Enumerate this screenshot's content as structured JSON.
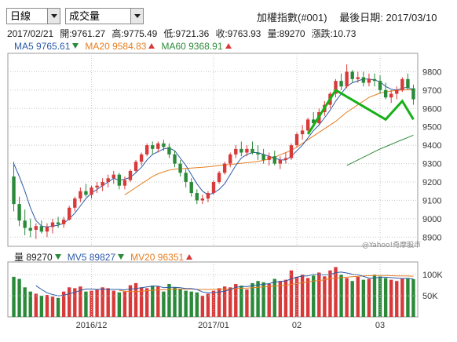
{
  "controls": {
    "period_select": "日線",
    "indicator_select": "成交量"
  },
  "header": {
    "index_name": "加權指數(#001)",
    "latest_date_label": "最後日期: 2017/03/10"
  },
  "quote": {
    "date": "2017/02/21",
    "open": "開:9761.27",
    "high": "高:9775.49",
    "low": "低:9721.36",
    "close": "收:9763.93",
    "volume": "量:89270",
    "change": "漲跌:10.73"
  },
  "ma_legend": [
    {
      "label": "MA5 9765.61",
      "color": "#2b5aa8",
      "trend": "down"
    },
    {
      "label": "MA20 9584.83",
      "color": "#e67e22",
      "trend": "up"
    },
    {
      "label": "MA60 9368.91",
      "color": "#2e8b3a",
      "trend": "up"
    }
  ],
  "vol_legend": [
    {
      "label": "量 89270",
      "color": "#222222",
      "trend": "down"
    },
    {
      "label": "MV5 89827",
      "color": "#2b5aa8",
      "trend": "down"
    },
    {
      "label": "MV20 96351",
      "color": "#e67e22",
      "trend": "up"
    }
  ],
  "colors": {
    "up": "#d83a3a",
    "down": "#2a8a3a",
    "ma5": "#2b5aa8",
    "ma20": "#e67e22",
    "ma60": "#2e8b3a",
    "grid": "#c8c8c8",
    "annotation": "#18b018"
  },
  "watermark": "@Yahoo!奇摩股市",
  "chart_data": [
    {
      "type": "candlestick",
      "ylim": [
        8850,
        9900
      ],
      "y_ticks": [
        "9800",
        "9700",
        "9600",
        "9500",
        "9400",
        "9300",
        "9200",
        "9100",
        "9000",
        "8900"
      ],
      "y_tick_values": [
        9800,
        9700,
        9600,
        9500,
        9400,
        9300,
        9200,
        9100,
        9000,
        8900
      ],
      "grid": true,
      "candles": [
        [
          9230,
          9310,
          9040,
          9080
        ],
        [
          9080,
          9120,
          8960,
          8990
        ],
        [
          8990,
          9050,
          8910,
          8950
        ],
        [
          8950,
          9000,
          8900,
          8935
        ],
        [
          8940,
          8975,
          8890,
          8960
        ],
        [
          8960,
          8990,
          8920,
          8930
        ],
        [
          8930,
          8975,
          8900,
          8955
        ],
        [
          8955,
          9000,
          8920,
          8980
        ],
        [
          8980,
          9010,
          8950,
          8970
        ],
        [
          8970,
          9010,
          8950,
          8995
        ],
        [
          8995,
          9070,
          8990,
          9060
        ],
        [
          9060,
          9120,
          9040,
          9110
        ],
        [
          9110,
          9170,
          9090,
          9150
        ],
        [
          9150,
          9190,
          9120,
          9130
        ],
        [
          9130,
          9180,
          9110,
          9170
        ],
        [
          9170,
          9200,
          9140,
          9180
        ],
        [
          9180,
          9220,
          9150,
          9200
        ],
        [
          9200,
          9240,
          9170,
          9220
        ],
        [
          9220,
          9260,
          9190,
          9240
        ],
        [
          9240,
          9250,
          9160,
          9180
        ],
        [
          9180,
          9230,
          9160,
          9210
        ],
        [
          9210,
          9270,
          9200,
          9260
        ],
        [
          9260,
          9320,
          9250,
          9310
        ],
        [
          9310,
          9360,
          9290,
          9350
        ],
        [
          9350,
          9410,
          9340,
          9400
        ],
        [
          9400,
          9420,
          9350,
          9380
        ],
        [
          9380,
          9420,
          9360,
          9410
        ],
        [
          9410,
          9430,
          9370,
          9390
        ],
        [
          9390,
          9410,
          9330,
          9350
        ],
        [
          9350,
          9370,
          9280,
          9300
        ],
        [
          9300,
          9320,
          9230,
          9250
        ],
        [
          9250,
          9270,
          9170,
          9200
        ],
        [
          9200,
          9220,
          9120,
          9140
        ],
        [
          9140,
          9160,
          9080,
          9100
        ],
        [
          9100,
          9130,
          9080,
          9110
        ],
        [
          9110,
          9150,
          9090,
          9140
        ],
        [
          9140,
          9210,
          9130,
          9200
        ],
        [
          9200,
          9260,
          9190,
          9250
        ],
        [
          9250,
          9310,
          9240,
          9300
        ],
        [
          9300,
          9360,
          9280,
          9350
        ],
        [
          9350,
          9400,
          9330,
          9380
        ],
        [
          9380,
          9420,
          9340,
          9360
        ],
        [
          9360,
          9400,
          9340,
          9380
        ],
        [
          9380,
          9420,
          9350,
          9360
        ],
        [
          9360,
          9400,
          9320,
          9350
        ],
        [
          9350,
          9380,
          9300,
          9320
        ],
        [
          9320,
          9360,
          9290,
          9340
        ],
        [
          9340,
          9370,
          9290,
          9300
        ],
        [
          9300,
          9340,
          9270,
          9320
        ],
        [
          9320,
          9360,
          9300,
          9330
        ],
        [
          9330,
          9410,
          9320,
          9400
        ],
        [
          9400,
          9470,
          9390,
          9460
        ],
        [
          9460,
          9510,
          9430,
          9480
        ],
        [
          9480,
          9550,
          9470,
          9540
        ],
        [
          9540,
          9580,
          9500,
          9520
        ],
        [
          9520,
          9600,
          9510,
          9580
        ],
        [
          9580,
          9640,
          9560,
          9620
        ],
        [
          9620,
          9690,
          9600,
          9680
        ],
        [
          9680,
          9760,
          9660,
          9750
        ],
        [
          9750,
          9790,
          9700,
          9720
        ],
        [
          9720,
          9840,
          9710,
          9800
        ],
        [
          9800,
          9810,
          9740,
          9760
        ],
        [
          9760,
          9800,
          9740,
          9770
        ],
        [
          9770,
          9800,
          9720,
          9740
        ],
        [
          9740,
          9790,
          9720,
          9760
        ],
        [
          9760,
          9790,
          9720,
          9750
        ],
        [
          9750,
          9780,
          9680,
          9700
        ],
        [
          9700,
          9740,
          9650,
          9660
        ],
        [
          9660,
          9700,
          9630,
          9680
        ],
        [
          9680,
          9720,
          9650,
          9700
        ],
        [
          9700,
          9770,
          9690,
          9760
        ],
        [
          9760,
          9790,
          9700,
          9710
        ],
        [
          9710,
          9730,
          9620,
          9650
        ]
      ],
      "ma5": [
        9300,
        9230,
        9150,
        9060,
        8990,
        8960,
        8955,
        8960,
        8965,
        8975,
        9000,
        9030,
        9070,
        9110,
        9140,
        9160,
        9180,
        9200,
        9220,
        9210,
        9215,
        9225,
        9250,
        9280,
        9320,
        9350,
        9365,
        9380,
        9385,
        9370,
        9330,
        9290,
        9240,
        9190,
        9150,
        9130,
        9140,
        9160,
        9190,
        9240,
        9290,
        9330,
        9350,
        9360,
        9360,
        9350,
        9340,
        9330,
        9320,
        9320,
        9340,
        9370,
        9400,
        9440,
        9480,
        9510,
        9550,
        9590,
        9640,
        9680,
        9720,
        9740,
        9750,
        9760,
        9760,
        9755,
        9745,
        9720,
        9705,
        9700,
        9710,
        9715,
        9700
      ],
      "ma20": [
        null,
        null,
        null,
        null,
        null,
        null,
        null,
        null,
        null,
        null,
        null,
        null,
        null,
        null,
        null,
        null,
        null,
        null,
        null,
        null,
        9130,
        9150,
        9170,
        9190,
        9210,
        9230,
        9245,
        9255,
        9265,
        9270,
        9272,
        9274,
        9276,
        9278,
        9280,
        9283,
        9286,
        9290,
        9292,
        9295,
        9298,
        9302,
        9305,
        9308,
        9312,
        9318,
        9325,
        9335,
        9348,
        9360,
        9372,
        9390,
        9410,
        9430,
        9450,
        9470,
        9490,
        9510,
        9530,
        9555,
        9580,
        9600,
        9620,
        9640,
        9660,
        9672,
        9684,
        9690,
        9695,
        9698,
        9700,
        9702,
        9700
      ],
      "ma60": [
        null,
        null,
        null,
        null,
        null,
        null,
        null,
        null,
        null,
        null,
        null,
        null,
        null,
        null,
        null,
        null,
        null,
        null,
        null,
        null,
        null,
        null,
        null,
        null,
        null,
        null,
        null,
        null,
        null,
        null,
        null,
        null,
        null,
        null,
        null,
        null,
        null,
        null,
        null,
        null,
        null,
        null,
        null,
        null,
        null,
        null,
        null,
        null,
        null,
        null,
        null,
        null,
        null,
        null,
        null,
        null,
        null,
        null,
        null,
        null,
        9290,
        9305,
        9320,
        9335,
        9350,
        9365,
        9380,
        9392,
        9405,
        9418,
        9430,
        9442,
        9455
      ],
      "annotation": [
        [
          9460,
          53
        ],
        [
          9700,
          58
        ],
        [
          9540,
          67
        ],
        [
          9640,
          70
        ],
        [
          9540,
          72
        ]
      ]
    },
    {
      "type": "bar",
      "ylim": [
        0,
        130000
      ],
      "y_ticks": [
        "100K",
        "50K"
      ],
      "y_tick_values": [
        100000,
        50000
      ],
      "x_ticks": [
        "2016/12",
        "2017/01",
        "02",
        "03"
      ],
      "x_tick_index": [
        14,
        36,
        51,
        66
      ],
      "volume": [
        95000,
        90000,
        70000,
        60000,
        55000,
        50000,
        52000,
        48000,
        45000,
        60000,
        70000,
        68000,
        72000,
        60000,
        62000,
        65000,
        70000,
        68000,
        62000,
        58000,
        60000,
        75000,
        80000,
        70000,
        68000,
        74000,
        72000,
        60000,
        78000,
        70000,
        65000,
        62000,
        60000,
        58000,
        50000,
        55000,
        62000,
        68000,
        72000,
        70000,
        78000,
        74000,
        65000,
        80000,
        85000,
        82000,
        78000,
        90000,
        85000,
        88000,
        110000,
        95000,
        100000,
        92000,
        98000,
        105000,
        96000,
        110000,
        118000,
        100000,
        92000,
        85000,
        95000,
        88000,
        90000,
        100000,
        96000,
        92000,
        88000,
        85000,
        90000,
        92000,
        89270
      ],
      "mv5": [
        null,
        null,
        null,
        null,
        74000,
        65000,
        57000,
        53000,
        50000,
        51000,
        55000,
        58000,
        63000,
        66000,
        66000,
        65000,
        66000,
        65000,
        65000,
        65000,
        64000,
        66000,
        67000,
        69000,
        71000,
        73000,
        73000,
        69000,
        70000,
        70000,
        69000,
        67000,
        67000,
        65000,
        59000,
        57000,
        57000,
        59000,
        61000,
        65000,
        70000,
        72000,
        72000,
        74000,
        76000,
        77000,
        79000,
        82000,
        84000,
        85000,
        90000,
        94000,
        97000,
        97000,
        101000,
        100000,
        100000,
        100000,
        105000,
        106000,
        104000,
        101000,
        100000,
        96000,
        92000,
        92000,
        94000,
        94000,
        93000,
        92000,
        91000,
        91000,
        89827
      ],
      "mv20": [
        null,
        null,
        null,
        null,
        null,
        null,
        null,
        null,
        null,
        null,
        null,
        null,
        null,
        null,
        null,
        null,
        null,
        null,
        null,
        63000,
        61000,
        60000,
        60000,
        61000,
        62000,
        63000,
        64000,
        64000,
        65000,
        66000,
        66000,
        66000,
        66000,
        65000,
        65000,
        65000,
        65000,
        65000,
        66000,
        66000,
        67000,
        68000,
        68000,
        69000,
        70000,
        71000,
        72000,
        73000,
        74000,
        75000,
        77000,
        79000,
        81000,
        83000,
        85000,
        86000,
        88000,
        90000,
        92000,
        93000,
        94000,
        95000,
        96000,
        97000,
        97500,
        97800,
        98000,
        97800,
        97500,
        97200,
        97000,
        96700,
        96351
      ]
    }
  ]
}
